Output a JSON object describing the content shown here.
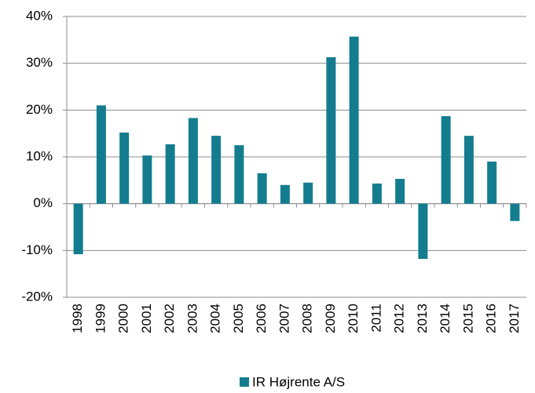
{
  "chart_data": {
    "type": "bar",
    "categories": [
      "1998",
      "1999",
      "2000",
      "2001",
      "2002",
      "2003",
      "2004",
      "2005",
      "2006",
      "2007",
      "2008",
      "2009",
      "2010",
      "2011",
      "2012",
      "2013",
      "2014",
      "2015",
      "2016",
      "2017"
    ],
    "series": [
      {
        "name": "IR Højrente A/S",
        "color": "#137d8f",
        "values": [
          -10.8,
          21.0,
          15.2,
          10.3,
          12.7,
          18.3,
          14.5,
          12.5,
          6.5,
          4.0,
          4.5,
          31.3,
          35.7,
          4.3,
          5.3,
          -11.8,
          18.7,
          14.5,
          9.0,
          -3.7
        ]
      }
    ],
    "ylim": [
      -20,
      40
    ],
    "yticks": [
      {
        "value": -20,
        "label": "-20%"
      },
      {
        "value": -10,
        "label": "-10%"
      },
      {
        "value": 0,
        "label": "0%"
      },
      {
        "value": 10,
        "label": "10%"
      },
      {
        "value": 20,
        "label": "20%"
      },
      {
        "value": 30,
        "label": "30%"
      },
      {
        "value": 40,
        "label": "40%"
      }
    ],
    "grid": true,
    "legend": "bottom"
  }
}
